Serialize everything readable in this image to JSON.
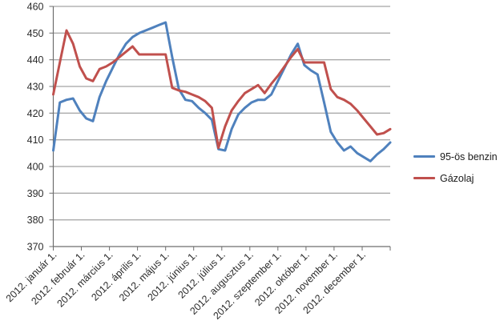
{
  "chart_data": {
    "type": "line",
    "title": "",
    "xlabel": "",
    "ylabel": "",
    "ylim": [
      370,
      460
    ],
    "y_ticks": [
      370,
      380,
      390,
      400,
      410,
      420,
      430,
      440,
      450,
      460
    ],
    "x_tick_labels": [
      "2012. január 1.",
      "2012. február 1.",
      "2012. március 1.",
      "2012. április 1.",
      "2012. május 1.",
      "2012. június 1.",
      "2012. július 1.",
      "2012. augusztus 1.",
      "2012. szeptember 1.",
      "2012. október 1.",
      "2012. november 1.",
      "2012. december 1."
    ],
    "grid": "horizontal",
    "legend_position": "right",
    "points_per_series": 52,
    "x_unit": "week of 2012",
    "series": [
      {
        "name": "95-ös benzin",
        "color": "#4F81BD",
        "values": [
          406,
          424,
          425,
          425.5,
          421,
          418,
          417,
          426,
          432,
          437,
          442,
          446,
          448.5,
          450,
          451,
          452,
          453,
          454,
          441,
          429,
          425,
          424.5,
          422,
          420,
          417.5,
          406.5,
          406,
          414,
          419.5,
          422,
          424,
          425,
          425,
          427,
          432,
          437,
          442,
          446,
          438,
          436,
          434.5,
          424,
          413,
          409,
          406,
          407.5,
          405,
          403.5,
          402,
          404.5,
          406.5,
          409
        ]
      },
      {
        "name": "Gázolaj",
        "color": "#C0504D",
        "values": [
          427,
          439,
          451,
          446,
          437.5,
          433,
          432,
          436.5,
          437.5,
          439,
          441,
          443,
          445,
          442,
          442,
          442,
          442,
          442,
          429.5,
          428.5,
          428,
          427,
          426,
          424.5,
          422,
          407,
          415,
          421,
          424.5,
          427.5,
          429,
          430.5,
          427.5,
          431,
          434,
          437.5,
          441,
          444,
          439,
          439,
          439,
          439,
          429,
          426,
          425,
          423.5,
          421,
          418,
          415,
          412,
          412.5,
          414
        ]
      }
    ],
    "style": {
      "gridline_color": "#8C8C8C",
      "axis_color": "#6E6E6E",
      "tick_text_color": "#2b2b2b",
      "series_stroke_width": 3
    }
  }
}
